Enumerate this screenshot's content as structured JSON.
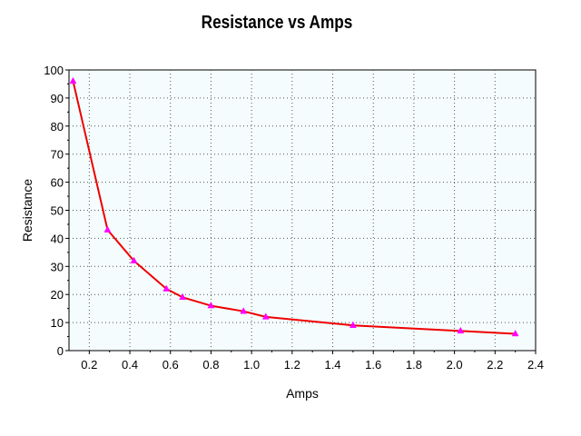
{
  "chart_data": {
    "type": "line",
    "title": "Resistance vs Amps",
    "xlabel": "Amps",
    "ylabel": "Resistance",
    "xlim": [
      0.1,
      2.4
    ],
    "ylim": [
      0,
      100
    ],
    "xticks": [
      0.2,
      0.4,
      0.6,
      0.8,
      1.0,
      1.2,
      1.4,
      1.6,
      1.8,
      2.0,
      2.2,
      2.4
    ],
    "xtick_labels": [
      "0.2",
      "0.4",
      "0.6",
      "0.8",
      "1.0",
      "1.2",
      "1.4",
      "1.6",
      "1.8",
      "2.0",
      "2.2",
      "2.4"
    ],
    "yticks": [
      0,
      10,
      20,
      30,
      40,
      50,
      60,
      70,
      80,
      90,
      100
    ],
    "ytick_labels": [
      "0",
      "10",
      "20",
      "30",
      "40",
      "50",
      "60",
      "70",
      "80",
      "90",
      "100"
    ],
    "grid": true,
    "legend": "none",
    "series": [
      {
        "x": [
          0.12,
          0.29,
          0.42,
          0.58,
          0.66,
          0.8,
          0.96,
          1.07,
          1.5,
          2.03,
          2.3
        ],
        "y": [
          96,
          43,
          32,
          22,
          19,
          16,
          14,
          12,
          9,
          7,
          6
        ],
        "line_color": "#ee0000",
        "marker": "triangle",
        "marker_color": "#ff00ff"
      }
    ],
    "plot_background": "#f5fcfd"
  }
}
